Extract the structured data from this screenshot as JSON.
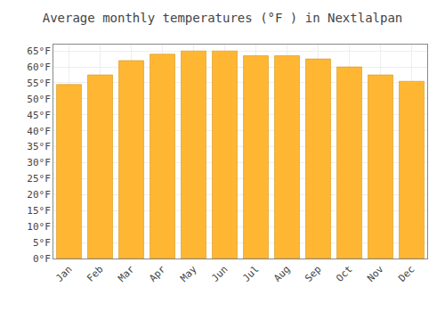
{
  "chart_data": {
    "type": "bar",
    "title": "Average monthly temperatures (°F ) in Nextlalpan",
    "categories": [
      "Jan",
      "Feb",
      "Mar",
      "Apr",
      "May",
      "Jun",
      "Jul",
      "Aug",
      "Sep",
      "Oct",
      "Nov",
      "Dec"
    ],
    "values": [
      54.5,
      57.5,
      62.0,
      64.0,
      65.0,
      65.0,
      63.5,
      63.5,
      62.5,
      60.0,
      57.5,
      55.5
    ],
    "color": "#FFB733",
    "ylim": [
      0,
      67
    ],
    "yticks": [
      {
        "value": 0,
        "label": "0°F"
      },
      {
        "value": 5,
        "label": "5°F"
      },
      {
        "value": 10,
        "label": "10°F"
      },
      {
        "value": 15,
        "label": "15°F"
      },
      {
        "value": 20,
        "label": "20°F"
      },
      {
        "value": 25,
        "label": "25°F"
      },
      {
        "value": 30,
        "label": "30°F"
      },
      {
        "value": 35,
        "label": "35°F"
      },
      {
        "value": 40,
        "label": "40°F"
      },
      {
        "value": 45,
        "label": "45°F"
      },
      {
        "value": 50,
        "label": "50°F"
      },
      {
        "value": 55,
        "label": "55°F"
      },
      {
        "value": 60,
        "label": "60°F"
      },
      {
        "value": 65,
        "label": "65°F"
      }
    ],
    "grid": true
  }
}
